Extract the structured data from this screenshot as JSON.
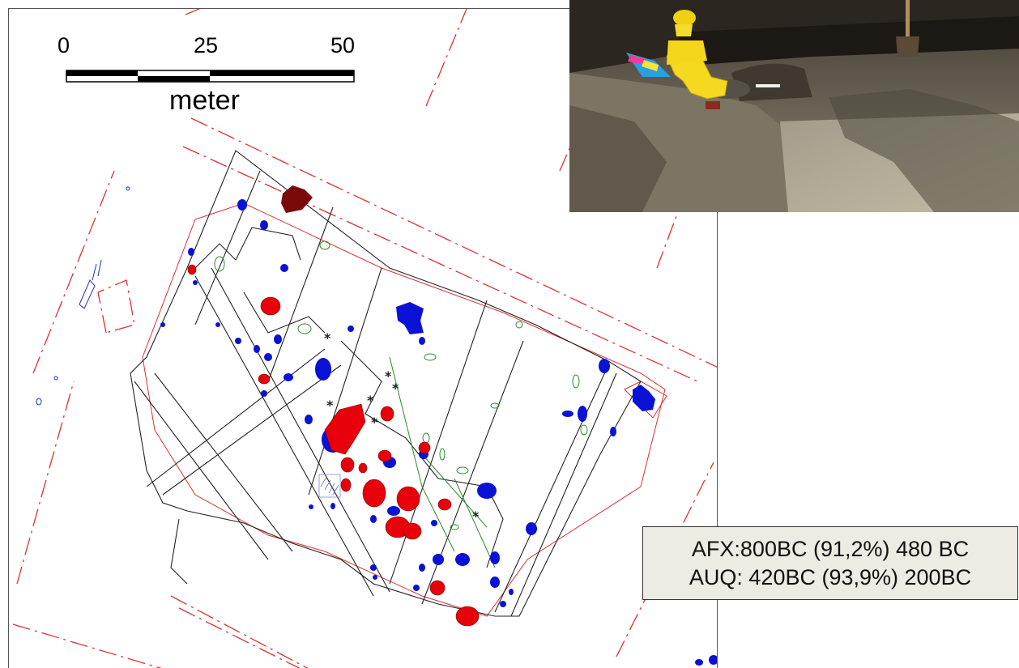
{
  "scale": {
    "tick_labels": [
      "0",
      "25",
      "50"
    ],
    "unit": "meter"
  },
  "photo": {
    "subject": "excavation-trench-with-archaeologist-in-yellow-raincoat"
  },
  "dating": {
    "line1": "AFX:800BC (91,2%) 480 BC",
    "line2": "AUQ: 420BC (93,9%) 200BC"
  },
  "colors": {
    "feature_red": "#e8000b",
    "feature_blue": "#0a12d6",
    "feature_darkred": "#7a0a0a",
    "outline_red": "#e03030",
    "outline_black": "#222222",
    "outline_green": "#2a8a2a",
    "dates_box_bg": "#ecece2"
  }
}
